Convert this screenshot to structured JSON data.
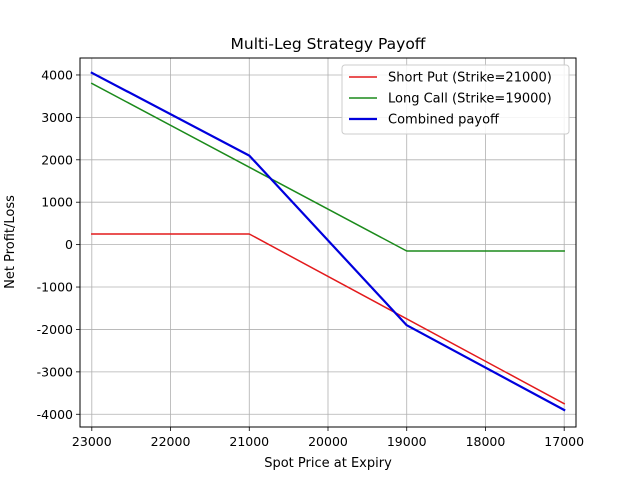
{
  "chart_data": {
    "type": "line",
    "title": "Multi-Leg Strategy Payoff",
    "xlabel": "Spot Price at Expiry",
    "ylabel": "Net Profit/Loss",
    "x_inverted": true,
    "xlim": [
      23150,
      16850
    ],
    "ylim": [
      -4300,
      4400
    ],
    "xticks": [
      23000,
      22000,
      21000,
      20000,
      19000,
      18000,
      17000
    ],
    "yticks": [
      -4000,
      -3000,
      -2000,
      -1000,
      0,
      1000,
      2000,
      3000,
      4000
    ],
    "grid": true,
    "legend_position": "top-right",
    "series": [
      {
        "name": "Short Put (Strike=21000)",
        "color": "#e31a1c",
        "stroke_width": 1.5,
        "x": [
          23000,
          21000,
          17000
        ],
        "y": [
          250,
          250,
          -3750
        ]
      },
      {
        "name": "Long Call (Strike=19000)",
        "color": "#1b8a1b",
        "stroke_width": 1.5,
        "x": [
          23000,
          19000,
          17000
        ],
        "y": [
          3800,
          -150,
          -150
        ]
      },
      {
        "name": "Combined payoff",
        "color": "#0000dd",
        "stroke_width": 2.2,
        "x": [
          23000,
          21000,
          19000,
          17000
        ],
        "y": [
          4050,
          2100,
          -1900,
          -3900
        ]
      }
    ]
  }
}
